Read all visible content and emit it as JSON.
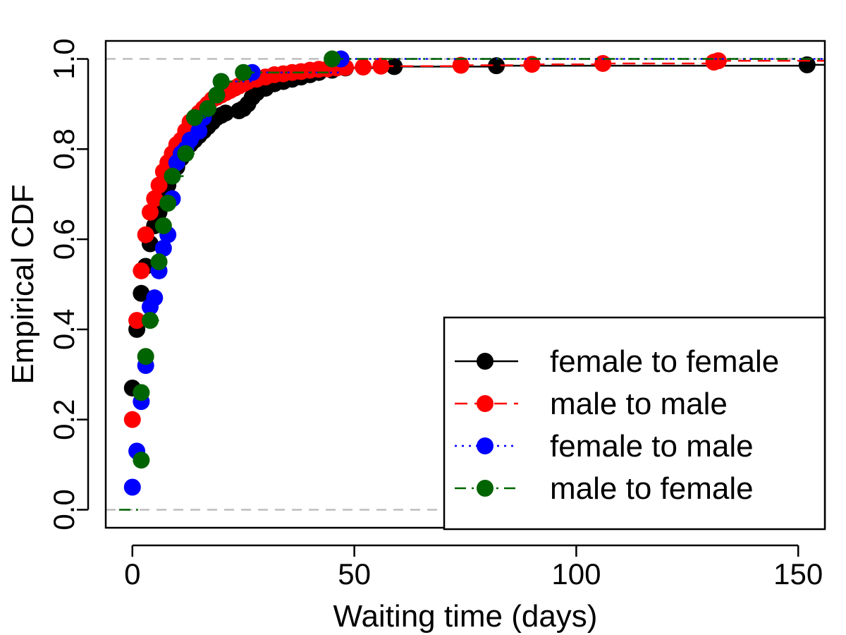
{
  "chart_data": {
    "type": "line",
    "subtype": "empirical-cdf-step",
    "title": "",
    "xlabel": "Waiting time (days)",
    "ylabel": "Empirical CDF",
    "xlim": [
      -6,
      156
    ],
    "ylim": [
      -0.04,
      1.04
    ],
    "xticks": [
      0,
      50,
      100,
      150
    ],
    "xtick_labels": [
      "0",
      "50",
      "100",
      "150"
    ],
    "yticks": [
      0.0,
      0.2,
      0.4,
      0.6,
      0.8,
      1.0
    ],
    "ytick_labels": [
      "0.0",
      "0.2",
      "0.4",
      "0.6",
      "0.8",
      "1.0"
    ],
    "reference_lines_y": [
      0.0,
      1.0
    ],
    "grid": false,
    "legend_position": "bottom-right",
    "series": [
      {
        "name": "female to female",
        "color": "#000000",
        "line_style": "solid",
        "points": [
          [
            0,
            0.27
          ],
          [
            1,
            0.4
          ],
          [
            2,
            0.48
          ],
          [
            3,
            0.54
          ],
          [
            4,
            0.59
          ],
          [
            5,
            0.63
          ],
          [
            6,
            0.66
          ],
          [
            7,
            0.69
          ],
          [
            8,
            0.72
          ],
          [
            9,
            0.74
          ],
          [
            10,
            0.76
          ],
          [
            11,
            0.78
          ],
          [
            12,
            0.79
          ],
          [
            13,
            0.81
          ],
          [
            14,
            0.82
          ],
          [
            15,
            0.83
          ],
          [
            16,
            0.84
          ],
          [
            17,
            0.85
          ],
          [
            18,
            0.86
          ],
          [
            19,
            0.87
          ],
          [
            20,
            0.875
          ],
          [
            21,
            0.88
          ],
          [
            24,
            0.885
          ],
          [
            25,
            0.89
          ],
          [
            26,
            0.9
          ],
          [
            27,
            0.915
          ],
          [
            28,
            0.925
          ],
          [
            30,
            0.935
          ],
          [
            32,
            0.945
          ],
          [
            34,
            0.95
          ],
          [
            36,
            0.955
          ],
          [
            38,
            0.96
          ],
          [
            40,
            0.965
          ],
          [
            42,
            0.97
          ],
          [
            45,
            0.975
          ],
          [
            48,
            0.98
          ],
          [
            59,
            0.983
          ],
          [
            82,
            0.985
          ],
          [
            152,
            0.987
          ]
        ]
      },
      {
        "name": "male to male",
        "color": "#ff0000",
        "line_style": "dashed",
        "points": [
          [
            0,
            0.2
          ],
          [
            1,
            0.42
          ],
          [
            2,
            0.53
          ],
          [
            3,
            0.61
          ],
          [
            4,
            0.66
          ],
          [
            5,
            0.69
          ],
          [
            6,
            0.72
          ],
          [
            7,
            0.75
          ],
          [
            8,
            0.77
          ],
          [
            9,
            0.79
          ],
          [
            10,
            0.81
          ],
          [
            11,
            0.82
          ],
          [
            12,
            0.84
          ],
          [
            13,
            0.86
          ],
          [
            14,
            0.87
          ],
          [
            15,
            0.88
          ],
          [
            16,
            0.89
          ],
          [
            17,
            0.9
          ],
          [
            18,
            0.91
          ],
          [
            19,
            0.915
          ],
          [
            20,
            0.92
          ],
          [
            21,
            0.925
          ],
          [
            22,
            0.93
          ],
          [
            23,
            0.935
          ],
          [
            24,
            0.94
          ],
          [
            25,
            0.945
          ],
          [
            26,
            0.95
          ],
          [
            28,
            0.955
          ],
          [
            30,
            0.96
          ],
          [
            32,
            0.965
          ],
          [
            34,
            0.967
          ],
          [
            36,
            0.97
          ],
          [
            38,
            0.972
          ],
          [
            40,
            0.975
          ],
          [
            42,
            0.977
          ],
          [
            44,
            0.978
          ],
          [
            46,
            0.98
          ],
          [
            48,
            0.981
          ],
          [
            52,
            0.982
          ],
          [
            56,
            0.984
          ],
          [
            74,
            0.986
          ],
          [
            90,
            0.988
          ],
          [
            106,
            0.99
          ],
          [
            131,
            0.993
          ],
          [
            132,
            0.996
          ]
        ]
      },
      {
        "name": "female to male",
        "color": "#0000ff",
        "line_style": "dotted",
        "points": [
          [
            0,
            0.05
          ],
          [
            1,
            0.13
          ],
          [
            2,
            0.24
          ],
          [
            3,
            0.32
          ],
          [
            4,
            0.45
          ],
          [
            5,
            0.47
          ],
          [
            6,
            0.53
          ],
          [
            7,
            0.58
          ],
          [
            8,
            0.61
          ],
          [
            9,
            0.69
          ],
          [
            10,
            0.77
          ],
          [
            11,
            0.79
          ],
          [
            12,
            0.8
          ],
          [
            13,
            0.82
          ],
          [
            15,
            0.84
          ],
          [
            16,
            0.87
          ],
          [
            17,
            0.89
          ],
          [
            19,
            0.92
          ],
          [
            20,
            0.95
          ],
          [
            27,
            0.97
          ],
          [
            47,
            1.0
          ]
        ]
      },
      {
        "name": "male to female",
        "color": "#006400",
        "line_style": "dashdot",
        "points": [
          [
            -3,
            0.0
          ],
          [
            2,
            0.11
          ],
          [
            2,
            0.26
          ],
          [
            3,
            0.34
          ],
          [
            4,
            0.42
          ],
          [
            6,
            0.55
          ],
          [
            7,
            0.63
          ],
          [
            8,
            0.68
          ],
          [
            9,
            0.74
          ],
          [
            12,
            0.79
          ],
          [
            14,
            0.87
          ],
          [
            17,
            0.89
          ],
          [
            19,
            0.92
          ],
          [
            20,
            0.95
          ],
          [
            25,
            0.97
          ],
          [
            45,
            1.0
          ]
        ]
      }
    ]
  }
}
